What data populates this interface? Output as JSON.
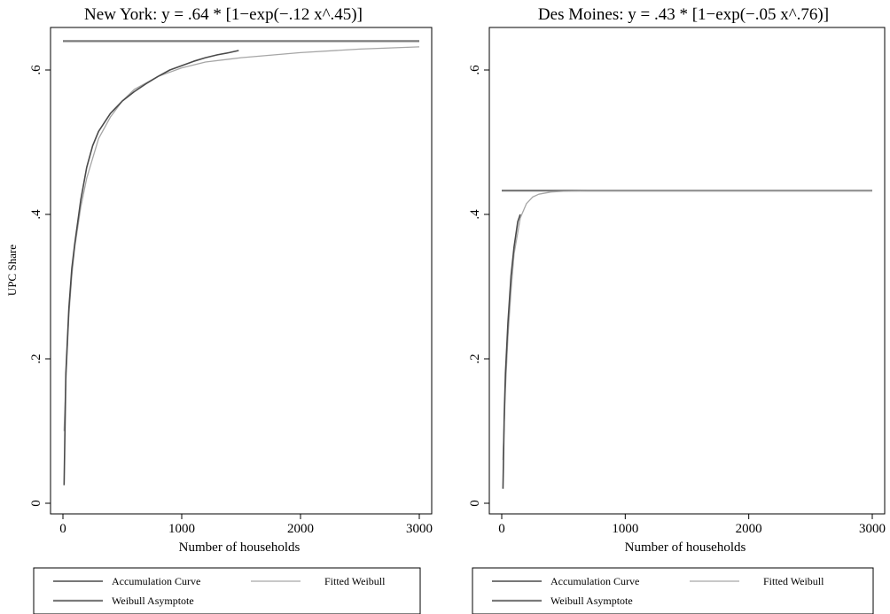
{
  "figure": {
    "shared_ylabel": "UPC Share"
  },
  "colors": {
    "accumulation": "#4a4a4a",
    "fitted": "#a6a6a6",
    "asymptote": "#7a7a7a",
    "axis": "#000000",
    "legend_border": "#000000"
  },
  "legend": {
    "entries": [
      "Accumulation Curve",
      "Fitted Weibull",
      "Weibull Asymptote"
    ]
  },
  "chart_data": [
    {
      "type": "line",
      "title": "New York: y = .64 * [1−exp(−.12 x^.45)]",
      "xlabel": "Number of households",
      "ylabel": "UPC Share",
      "xlim": [
        0,
        3000
      ],
      "ylim": [
        0,
        0.64
      ],
      "x_ticks": [
        0,
        1000,
        2000,
        3000
      ],
      "x_tick_labels": [
        "0",
        "1000",
        "2000",
        "3000"
      ],
      "y_ticks": [
        0,
        0.2,
        0.4,
        0.6
      ],
      "y_tick_labels": [
        "0",
        ".2",
        ".4",
        ".6"
      ],
      "grid": false,
      "legend_position": "bottom",
      "series": [
        {
          "name": "Accumulation Curve",
          "x": [
            10,
            25,
            50,
            75,
            100,
            150,
            200,
            250,
            300,
            400,
            500,
            600,
            700,
            800,
            900,
            1000,
            1100,
            1200,
            1300,
            1400,
            1480
          ],
          "y": [
            0.025,
            0.18,
            0.27,
            0.325,
            0.36,
            0.42,
            0.465,
            0.495,
            0.515,
            0.54,
            0.557,
            0.57,
            0.581,
            0.591,
            0.6,
            0.606,
            0.612,
            0.617,
            0.621,
            0.624,
            0.627
          ]
        },
        {
          "name": "Fitted Weibull",
          "x": [
            10,
            25,
            50,
            75,
            100,
            150,
            200,
            300,
            400,
            500,
            600,
            800,
            1000,
            1200,
            1500,
            2000,
            2500,
            3000
          ],
          "y": [
            0.1,
            0.17,
            0.26,
            0.315,
            0.355,
            0.41,
            0.45,
            0.505,
            0.535,
            0.557,
            0.573,
            0.591,
            0.603,
            0.611,
            0.617,
            0.624,
            0.629,
            0.632
          ]
        },
        {
          "name": "Weibull Asymptote",
          "x": [
            0,
            3000
          ],
          "y": [
            0.64,
            0.64
          ]
        }
      ]
    },
    {
      "type": "line",
      "title": "Des Moines: y = .43 * [1−exp(−.05 x^.76)]",
      "xlabel": "Number of households",
      "ylabel": "",
      "xlim": [
        0,
        3000
      ],
      "ylim": [
        0,
        0.64
      ],
      "x_ticks": [
        0,
        1000,
        2000,
        3000
      ],
      "x_tick_labels": [
        "0",
        "1000",
        "2000",
        "3000"
      ],
      "y_ticks": [
        0,
        0.2,
        0.4,
        0.6
      ],
      "y_tick_labels": [
        "0",
        ".2",
        ".4",
        ".6"
      ],
      "grid": false,
      "legend_position": "bottom",
      "series": [
        {
          "name": "Accumulation Curve",
          "x": [
            10,
            20,
            30,
            50,
            75,
            100,
            130,
            150
          ],
          "y": [
            0.02,
            0.12,
            0.18,
            0.25,
            0.315,
            0.355,
            0.39,
            0.4
          ]
        },
        {
          "name": "Fitted Weibull",
          "x": [
            10,
            20,
            30,
            50,
            75,
            100,
            150,
            200,
            250,
            300,
            400,
            500,
            700,
            1000,
            1500,
            2000,
            3000
          ],
          "y": [
            0.06,
            0.11,
            0.16,
            0.23,
            0.295,
            0.345,
            0.395,
            0.415,
            0.424,
            0.428,
            0.431,
            0.432,
            0.433,
            0.433,
            0.433,
            0.433,
            0.433
          ]
        },
        {
          "name": "Weibull Asymptote",
          "x": [
            0,
            3000
          ],
          "y": [
            0.433,
            0.433
          ]
        }
      ]
    }
  ]
}
